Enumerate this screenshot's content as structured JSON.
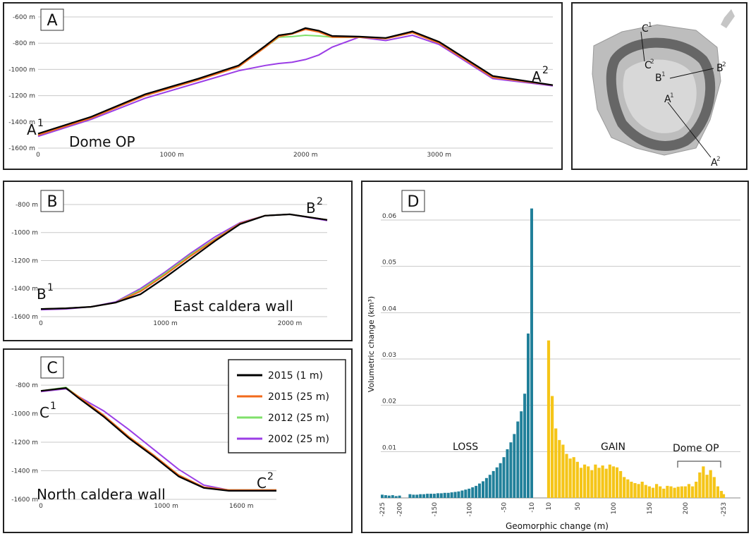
{
  "colors": {
    "c2015_1m": "#000000",
    "c2015_25m": "#f26a1b",
    "c2012_25m": "#7fe06a",
    "c2002_25m": "#9b3de6",
    "teal": "#21809a",
    "gold": "#f5c518"
  },
  "panelA": {
    "label": "A",
    "start": "A",
    "start_sup": "1",
    "end": "A",
    "end_sup": "2",
    "note": "Dome OP",
    "yticks": [
      "-600 m",
      "-800 m",
      "-1000 m",
      "-1200 m",
      "-1400 m",
      "-1600 m"
    ],
    "xticks": [
      "0",
      "1000 m",
      "2000 m",
      "3000 m"
    ]
  },
  "panelB": {
    "label": "B",
    "start": "B",
    "start_sup": "1",
    "end": "B",
    "end_sup": "2",
    "note": "East caldera wall",
    "yticks": [
      "-800 m",
      "-1000 m",
      "-1200 m",
      "-1400 m",
      "-1600 m"
    ],
    "xticks": [
      "0",
      "1000 m",
      "2000 m"
    ]
  },
  "panelC": {
    "label": "C",
    "start": "C",
    "start_sup": "1",
    "end": "C",
    "end_sup": "2",
    "note": "North caldera wall",
    "yticks": [
      "-800 m",
      "-1000 m",
      "-1200 m",
      "-1400 m",
      "-1600 m"
    ],
    "xticks": [
      "0",
      "1000 m",
      "1600 m"
    ]
  },
  "legend": [
    "2015 (1 m)",
    "2015 (25 m)",
    "2012 (25 m)",
    "2002 (25 m)"
  ],
  "map": {
    "labels": [
      "C",
      "1",
      "C",
      "2",
      "B",
      "1",
      "B",
      "2",
      "A",
      "1",
      "A",
      "2"
    ]
  },
  "panelD": {
    "label": "D",
    "loss": "LOSS",
    "gain": "GAIN",
    "dome": "Dome OP"
  },
  "chart_data": [
    {
      "type": "line",
      "title": "A",
      "xlabel": "",
      "ylabel": "",
      "xlim": [
        0,
        3850
      ],
      "ylim": [
        -1600,
        -600
      ],
      "series": [
        {
          "name": "2015 (1 m)",
          "x": [
            0,
            400,
            800,
            1200,
            1500,
            1700,
            1800,
            1900,
            2000,
            2100,
            2200,
            2400,
            2600,
            2800,
            3000,
            3400,
            3850
          ],
          "values": [
            -1490,
            -1360,
            -1190,
            -1070,
            -970,
            -820,
            -740,
            -725,
            -685,
            -705,
            -745,
            -750,
            -760,
            -710,
            -790,
            -1050,
            -1120
          ]
        },
        {
          "name": "2015 (25 m)",
          "x": [
            0,
            400,
            800,
            1200,
            1500,
            1700,
            1800,
            1900,
            2000,
            2100,
            2200,
            2400,
            2600,
            2800,
            3000,
            3400,
            3850
          ],
          "values": [
            -1500,
            -1370,
            -1200,
            -1080,
            -980,
            -830,
            -750,
            -730,
            -695,
            -715,
            -755,
            -755,
            -765,
            -720,
            -800,
            -1060,
            -1120
          ]
        },
        {
          "name": "2012 (25 m)",
          "x": [
            0,
            400,
            800,
            1200,
            1500,
            1700,
            1800,
            1900,
            2000,
            2100,
            2200,
            2400,
            2600,
            2800,
            3000,
            3400,
            3850
          ],
          "values": [
            -1500,
            -1370,
            -1200,
            -1080,
            -980,
            -830,
            -755,
            -750,
            -740,
            -745,
            -755,
            -755,
            -765,
            -720,
            -800,
            -1060,
            -1120
          ]
        },
        {
          "name": "2002 (25 m)",
          "x": [
            0,
            400,
            800,
            1200,
            1500,
            1700,
            1800,
            1900,
            2000,
            2100,
            2200,
            2400,
            2600,
            2800,
            3000,
            3400,
            3850
          ],
          "values": [
            -1510,
            -1380,
            -1220,
            -1100,
            -1010,
            -970,
            -955,
            -945,
            -925,
            -890,
            -830,
            -755,
            -780,
            -740,
            -810,
            -1070,
            -1125
          ]
        }
      ]
    },
    {
      "type": "line",
      "title": "B",
      "xlabel": "",
      "ylabel": "",
      "xlim": [
        0,
        2300
      ],
      "ylim": [
        -1600,
        -750
      ],
      "series": [
        {
          "name": "2015 (1 m)",
          "x": [
            0,
            200,
            400,
            600,
            800,
            1000,
            1200,
            1400,
            1600,
            1800,
            2000,
            2300
          ],
          "values": [
            -1545,
            -1540,
            -1530,
            -1500,
            -1440,
            -1320,
            -1190,
            -1060,
            -940,
            -880,
            -870,
            -910
          ]
        },
        {
          "name": "2015 (25 m)",
          "x": [
            0,
            200,
            400,
            600,
            800,
            1000,
            1200,
            1400,
            1600,
            1800,
            2000,
            2300
          ],
          "values": [
            -1545,
            -1540,
            -1530,
            -1500,
            -1420,
            -1300,
            -1170,
            -1050,
            -935,
            -880,
            -870,
            -910
          ]
        },
        {
          "name": "2012 (25 m)",
          "x": [
            0,
            200,
            400,
            600,
            800,
            1000,
            1200,
            1400,
            1600,
            1800,
            2000,
            2300
          ],
          "values": [
            -1545,
            -1540,
            -1530,
            -1500,
            -1410,
            -1290,
            -1160,
            -1045,
            -935,
            -880,
            -870,
            -910
          ]
        },
        {
          "name": "2002 (25 m)",
          "x": [
            0,
            200,
            400,
            600,
            800,
            1000,
            1200,
            1400,
            1600,
            1800,
            2000,
            2300
          ],
          "values": [
            -1550,
            -1545,
            -1530,
            -1495,
            -1400,
            -1280,
            -1150,
            -1030,
            -930,
            -880,
            -870,
            -915
          ]
        }
      ]
    },
    {
      "type": "line",
      "title": "C",
      "xlabel": "",
      "ylabel": "",
      "xlim": [
        0,
        1880
      ],
      "ylim": [
        -1600,
        -750
      ],
      "series": [
        {
          "name": "2015 (1 m)",
          "x": [
            0,
            200,
            300,
            500,
            700,
            900,
            1100,
            1300,
            1500,
            1880
          ],
          "values": [
            -840,
            -820,
            -890,
            -1020,
            -1170,
            -1300,
            -1440,
            -1520,
            -1540,
            -1540
          ]
        },
        {
          "name": "2015 (25 m)",
          "x": [
            0,
            200,
            300,
            500,
            700,
            900,
            1100,
            1300,
            1500,
            1880
          ],
          "values": [
            -840,
            -820,
            -880,
            -1010,
            -1160,
            -1290,
            -1430,
            -1515,
            -1535,
            -1535
          ]
        },
        {
          "name": "2012 (25 m)",
          "x": [
            0,
            200,
            300,
            500,
            700,
            900,
            1100,
            1300,
            1500,
            1880
          ],
          "values": [
            -840,
            -815,
            -880,
            -1010,
            -1160,
            -1290,
            -1430,
            -1515,
            -1535,
            -1535
          ]
        },
        {
          "name": "2002 (25 m)",
          "x": [
            0,
            200,
            300,
            500,
            700,
            900,
            1100,
            1300,
            1500,
            1880
          ],
          "values": [
            -845,
            -825,
            -880,
            -980,
            -1110,
            -1250,
            -1390,
            -1500,
            -1535,
            -1535
          ]
        }
      ]
    },
    {
      "type": "bar",
      "title": "D",
      "xlabel": "Geomorphic change (m)",
      "ylabel": "Volumetric change (km³)",
      "ylim": [
        0,
        0.067
      ],
      "yticks": [
        "0.01",
        "0.02",
        "0.03",
        "0.04",
        "0.05",
        "0.06"
      ],
      "xticks": [
        "-225",
        "-200",
        "-150",
        "-100",
        "-50",
        "-10",
        "10",
        "50",
        "100",
        "150",
        "200",
        "-253"
      ],
      "loss_series": {
        "name": "LOSS",
        "x": [
          -225,
          -220,
          -215,
          -210,
          -205,
          -200,
          -195,
          -190,
          -185,
          -180,
          -175,
          -170,
          -165,
          -160,
          -155,
          -150,
          -145,
          -140,
          -135,
          -130,
          -125,
          -120,
          -115,
          -110,
          -105,
          -100,
          -95,
          -90,
          -85,
          -80,
          -75,
          -70,
          -65,
          -60,
          -55,
          -50,
          -45,
          -40,
          -35,
          -30,
          -25,
          -20,
          -15,
          -10
        ],
        "values": [
          0.0007,
          0.0006,
          0.0005,
          0.0006,
          0.0004,
          0.0005,
          0,
          0,
          0.0008,
          0.0007,
          0.0007,
          0.0008,
          0.0008,
          0.0009,
          0.0009,
          0.0009,
          0.001,
          0.001,
          0.0011,
          0.0011,
          0.0012,
          0.0013,
          0.0014,
          0.0016,
          0.0018,
          0.002,
          0.0023,
          0.0026,
          0.0031,
          0.0036,
          0.0043,
          0.005,
          0.0058,
          0.0066,
          0.0075,
          0.0088,
          0.0105,
          0.012,
          0.0138,
          0.0165,
          0.0187,
          0.0225,
          0.0355,
          0.0625
        ]
      },
      "gain_series": {
        "name": "GAIN",
        "x": [
          10,
          15,
          20,
          25,
          30,
          35,
          40,
          45,
          50,
          55,
          60,
          65,
          70,
          75,
          80,
          85,
          90,
          95,
          100,
          105,
          110,
          115,
          120,
          125,
          130,
          135,
          140,
          145,
          150,
          155,
          160,
          165,
          170,
          175,
          180,
          185,
          190,
          195,
          200,
          205,
          210,
          215,
          220,
          225,
          230,
          235,
          240,
          245,
          250,
          253
        ],
        "values": [
          0.034,
          0.022,
          0.015,
          0.0125,
          0.0115,
          0.0095,
          0.0085,
          0.0088,
          0.0078,
          0.0065,
          0.0072,
          0.0068,
          0.006,
          0.0072,
          0.0065,
          0.007,
          0.0063,
          0.0072,
          0.0068,
          0.0066,
          0.0058,
          0.0045,
          0.004,
          0.0035,
          0.0032,
          0.003,
          0.0035,
          0.0028,
          0.0025,
          0.0022,
          0.003,
          0.0025,
          0.002,
          0.0026,
          0.0025,
          0.0022,
          0.0024,
          0.0025,
          0.0025,
          0.003,
          0.0025,
          0.0035,
          0.0055,
          0.0068,
          0.005,
          0.006,
          0.0045,
          0.0025,
          0.0015,
          0.0008
        ]
      }
    }
  ]
}
